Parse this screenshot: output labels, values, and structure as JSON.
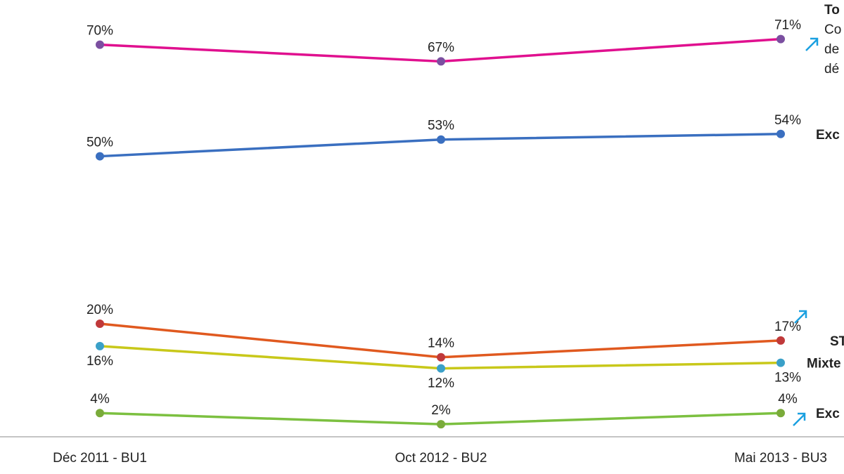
{
  "chart_data": {
    "type": "line",
    "categories": [
      "Déc 2011 - BU1",
      "Oct 2012 - BU2",
      "Mai 2013 - BU3"
    ],
    "ylim": [
      0,
      78
    ],
    "series": [
      {
        "name": [
          "To",
          "Co",
          "de",
          "dé"
        ],
        "color": "#e0108f",
        "marker_color": "#7b4fa0",
        "label_color": "#a0124a",
        "values": [
          70,
          67,
          71
        ],
        "value_labels": [
          "70%",
          "67%",
          "71%"
        ]
      },
      {
        "name": "Exc",
        "color": "#3a6fc0",
        "marker_color": "#3a6fc0",
        "values": [
          50,
          53,
          54
        ],
        "value_labels": [
          "50%",
          "53%",
          "54%"
        ]
      },
      {
        "name": "ST",
        "color": "#e0591f",
        "marker_color": "#c0393a",
        "values": [
          20,
          14,
          17
        ],
        "value_labels": [
          "20%",
          "14%",
          "17%"
        ]
      },
      {
        "name": "Mixte",
        "color": "#c8c81a",
        "marker_color": "#3aa0c8",
        "label_color": "#a8a010",
        "label_position": "below",
        "values": [
          16,
          12,
          13
        ],
        "value_labels": [
          "16%",
          "12%",
          "13%"
        ]
      },
      {
        "name": "Exc",
        "color": "#7cc040",
        "marker_color": "#7aab3a",
        "values": [
          4,
          2,
          4
        ],
        "value_labels": [
          "4%",
          "2%",
          "4%"
        ]
      }
    ]
  }
}
